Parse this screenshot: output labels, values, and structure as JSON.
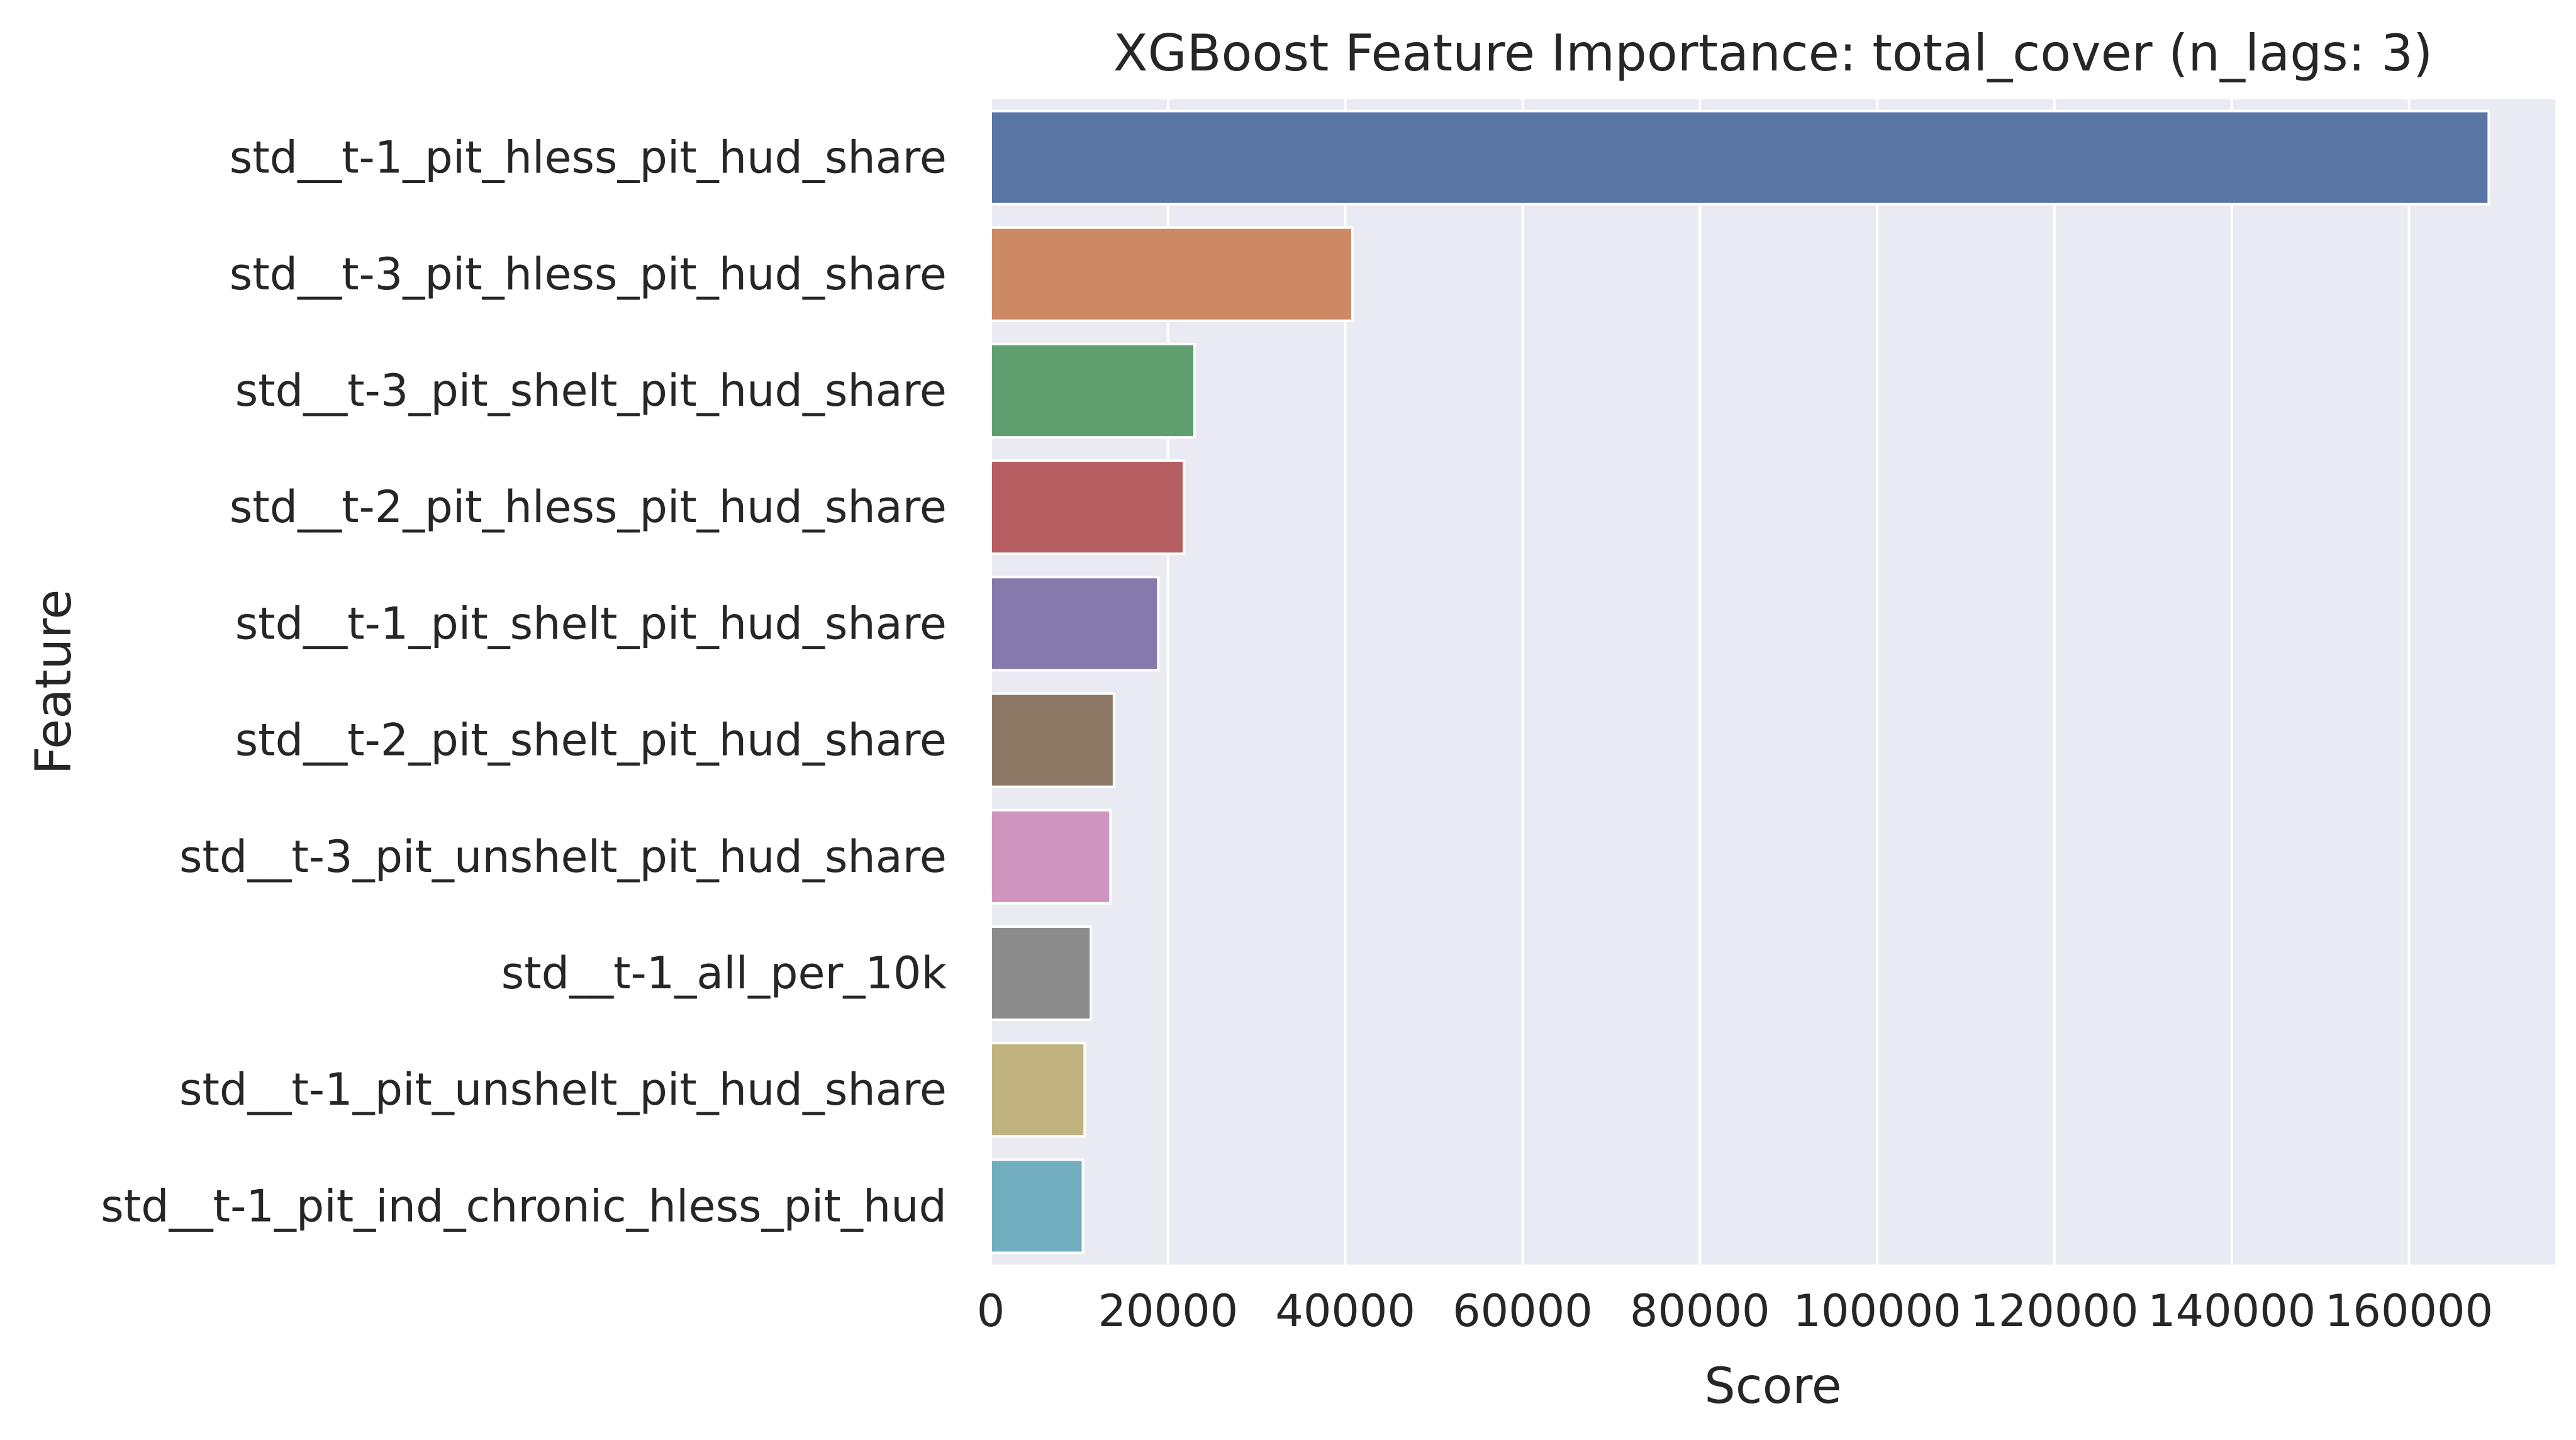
{
  "chart_data": {
    "type": "bar",
    "orientation": "horizontal",
    "title": "XGBoost Feature Importance: total_cover (n_lags: 3)",
    "xlabel": "Score",
    "ylabel": "Feature",
    "xlim": [
      0,
      176500
    ],
    "xticks": [
      0,
      20000,
      40000,
      60000,
      80000,
      100000,
      120000,
      140000,
      160000
    ],
    "xtick_labels": [
      "0",
      "20000",
      "40000",
      "60000",
      "80000",
      "100000",
      "120000",
      "140000",
      "160000"
    ],
    "grid": true,
    "categories": [
      "std__t-1_pit_hless_pit_hud_share",
      "std__t-3_pit_hless_pit_hud_share",
      "std__t-3_pit_shelt_pit_hud_share",
      "std__t-2_pit_hless_pit_hud_share",
      "std__t-1_pit_shelt_pit_hud_share",
      "std__t-2_pit_shelt_pit_hud_share",
      "std__t-3_pit_unshelt_pit_hud_share",
      "std__t-1_all_per_10k",
      "std__t-1_pit_unshelt_pit_hud_share",
      "std__t-1_pit_ind_chronic_hless_pit_hud"
    ],
    "values": [
      169000,
      40800,
      23000,
      21800,
      18900,
      13900,
      13500,
      11300,
      10600,
      10400
    ],
    "colors": [
      "#5975a4",
      "#cc8963",
      "#5f9e6e",
      "#b55d60",
      "#857aab",
      "#8d7866",
      "#d095bf",
      "#8c8c8c",
      "#c1b37f",
      "#71aec0"
    ],
    "background": "#eaeaf2"
  }
}
